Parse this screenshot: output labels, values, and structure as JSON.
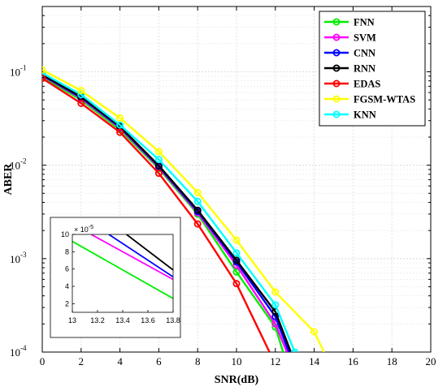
{
  "chart_data": {
    "type": "line",
    "xlabel": "SNR(dB)",
    "ylabel": "ABER",
    "x_scale": "linear",
    "y_scale": "log",
    "xlim": [
      0,
      20
    ],
    "ylim": [
      0.0001,
      0.5
    ],
    "x_ticks": [
      "0",
      "2",
      "4",
      "6",
      "8",
      "10",
      "12",
      "14",
      "16",
      "18",
      "20"
    ],
    "y_ticks": [
      {
        "value": 0.1,
        "base": "10",
        "exp": "-1"
      },
      {
        "value": 0.01,
        "base": "10",
        "exp": "-2"
      },
      {
        "value": 0.001,
        "base": "10",
        "exp": "-3"
      },
      {
        "value": 0.0001,
        "base": "10",
        "exp": "-4"
      }
    ],
    "grid": true,
    "legend_position": "top-right",
    "series": [
      {
        "name": "FNN",
        "color": "#00ee00",
        "x": [
          0,
          2,
          4,
          6,
          8,
          10,
          12,
          12.4
        ],
        "y": [
          0.088,
          0.05,
          0.024,
          0.0092,
          0.003,
          0.00072,
          0.000185,
          0.0001
        ]
      },
      {
        "name": "SVM",
        "color": "#ff00ff",
        "x": [
          0,
          2,
          4,
          6,
          8,
          10,
          12,
          12.6
        ],
        "y": [
          0.091,
          0.052,
          0.025,
          0.0095,
          0.0031,
          0.00085,
          0.0002,
          0.0001
        ]
      },
      {
        "name": "CNN",
        "color": "#0000ff",
        "x": [
          0,
          2,
          4,
          6,
          8,
          10,
          12,
          12.7
        ],
        "y": [
          0.092,
          0.053,
          0.0255,
          0.0097,
          0.0032,
          0.00092,
          0.00024,
          0.0001
        ]
      },
      {
        "name": "RNN",
        "color": "#000000",
        "x": [
          0,
          2,
          4,
          6,
          8,
          10,
          12,
          12.8
        ],
        "y": [
          0.093,
          0.054,
          0.026,
          0.0099,
          0.0033,
          0.00096,
          0.00027,
          0.0001
        ]
      },
      {
        "name": "EDAS",
        "color": "#ff0000",
        "x": [
          0,
          2,
          4,
          6,
          8,
          10,
          11.7
        ],
        "y": [
          0.085,
          0.046,
          0.0225,
          0.0082,
          0.00235,
          0.00054,
          0.0001
        ]
      },
      {
        "name": "FGSM-WTAS",
        "color": "#ffff00",
        "x": [
          0,
          2,
          4,
          6,
          8,
          10,
          12,
          14,
          14.5
        ],
        "y": [
          0.105,
          0.063,
          0.032,
          0.014,
          0.0051,
          0.00158,
          0.00044,
          0.000165,
          0.0001
        ]
      },
      {
        "name": "KNN",
        "color": "#00ffff",
        "x": [
          0,
          2,
          4,
          6,
          8,
          10,
          12,
          13
        ],
        "y": [
          0.097,
          0.057,
          0.027,
          0.0115,
          0.0041,
          0.00115,
          0.00032,
          0.0001
        ]
      }
    ],
    "inset": {
      "xlim": [
        13,
        13.8
      ],
      "ylim": [
        1,
        10
      ],
      "x_ticks": [
        "13",
        "13.2",
        "13.4",
        "13.6",
        "13.8"
      ],
      "y_ticks": [
        "2",
        "4",
        "6",
        "8",
        "10"
      ],
      "multiplier_base": "× 10",
      "multiplier_exp": "-5",
      "series": [
        {
          "name": "FNN",
          "x": [
            13,
            13.8
          ],
          "y": [
            9.2,
            2.6
          ]
        },
        {
          "name": "SVM",
          "x": [
            13.15,
            13.8
          ],
          "y": [
            10,
            4.8
          ]
        },
        {
          "name": "CNN",
          "x": [
            13.29,
            13.8
          ],
          "y": [
            10,
            5.1
          ]
        },
        {
          "name": "RNN",
          "x": [
            13.43,
            13.8
          ],
          "y": [
            10,
            5.9
          ]
        }
      ]
    }
  }
}
